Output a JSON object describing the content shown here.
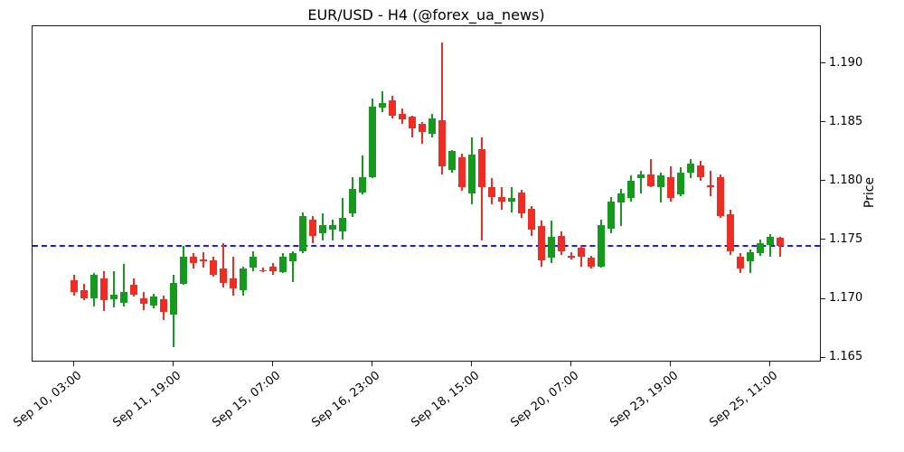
{
  "title": "EUR/USD - H4 (@forex_ua_news)",
  "chart_data": {
    "type": "candlestick",
    "title": "EUR/USD - H4 (@forex_ua_news)",
    "instrument": "EUR/USD",
    "timeframe": "H4",
    "ylabel_right": "Price",
    "ylim": [
      1.16462,
      1.19322
    ],
    "y_ticks": [
      1.165,
      1.17,
      1.175,
      1.18,
      1.185,
      1.19
    ],
    "y_tick_format": "0.000",
    "grid": false,
    "legend": "none",
    "up_color": "#169a1e",
    "down_color": "#ee2d24",
    "hline": {
      "value": 1.1745,
      "color": "#1a1aff",
      "style": "dashed"
    },
    "x_ticks": [
      {
        "index": 0,
        "label": "Sep 10, 03:00"
      },
      {
        "index": 10,
        "label": "Sep 11, 19:00"
      },
      {
        "index": 20,
        "label": "Sep 15, 07:00"
      },
      {
        "index": 30,
        "label": "Sep 16, 23:00"
      },
      {
        "index": 40,
        "label": "Sep 18, 15:00"
      },
      {
        "index": 50,
        "label": "Sep 20, 07:00"
      },
      {
        "index": 60,
        "label": "Sep 23, 19:00"
      },
      {
        "index": 70,
        "label": "Sep 25, 11:00"
      }
    ],
    "n_candles": 72,
    "candles_format": [
      "open",
      "high",
      "low",
      "close"
    ],
    "candles": [
      [
        1.1716,
        1.1721,
        1.1703,
        1.1706
      ],
      [
        1.1708,
        1.1713,
        1.1699,
        1.1701
      ],
      [
        1.1701,
        1.1722,
        1.1694,
        1.1721
      ],
      [
        1.1718,
        1.1724,
        1.169,
        1.1699
      ],
      [
        1.17,
        1.1724,
        1.1693,
        1.1704
      ],
      [
        1.1697,
        1.173,
        1.1694,
        1.1706
      ],
      [
        1.1712,
        1.1718,
        1.1702,
        1.1704
      ],
      [
        1.1701,
        1.1706,
        1.1691,
        1.1696
      ],
      [
        1.1695,
        1.1705,
        1.1692,
        1.1702
      ],
      [
        1.17,
        1.1703,
        1.1682,
        1.1689
      ],
      [
        1.1687,
        1.1721,
        1.1659,
        1.1714
      ],
      [
        1.1713,
        1.1745,
        1.1712,
        1.1736
      ],
      [
        1.1736,
        1.1739,
        1.1726,
        1.1731
      ],
      [
        1.1734,
        1.174,
        1.1727,
        1.1732
      ],
      [
        1.1733,
        1.1736,
        1.1719,
        1.1721
      ],
      [
        1.1726,
        1.1748,
        1.171,
        1.1714
      ],
      [
        1.1718,
        1.1736,
        1.1703,
        1.1709
      ],
      [
        1.1708,
        1.1728,
        1.1703,
        1.1726
      ],
      [
        1.1727,
        1.1741,
        1.1724,
        1.1736
      ],
      [
        1.1725,
        1.1727,
        1.1723,
        1.1724
      ],
      [
        1.1728,
        1.1731,
        1.1721,
        1.1724
      ],
      [
        1.1723,
        1.1739,
        1.1722,
        1.1736
      ],
      [
        1.1732,
        1.1741,
        1.1715,
        1.1739
      ],
      [
        1.1741,
        1.1774,
        1.1739,
        1.1771
      ],
      [
        1.1768,
        1.1771,
        1.1748,
        1.1754
      ],
      [
        1.1756,
        1.1773,
        1.175,
        1.1763
      ],
      [
        1.1759,
        1.1768,
        1.175,
        1.1763
      ],
      [
        1.1758,
        1.1786,
        1.1751,
        1.1769
      ],
      [
        1.1773,
        1.1804,
        1.177,
        1.1794
      ],
      [
        1.1791,
        1.1822,
        1.1789,
        1.1804
      ],
      [
        1.1804,
        1.1871,
        1.1803,
        1.1864
      ],
      [
        1.1863,
        1.1877,
        1.1859,
        1.1867
      ],
      [
        1.1869,
        1.1873,
        1.1854,
        1.1856
      ],
      [
        1.1858,
        1.1862,
        1.1849,
        1.1853
      ],
      [
        1.1855,
        1.1856,
        1.1838,
        1.1845
      ],
      [
        1.1849,
        1.1851,
        1.1832,
        1.1842
      ],
      [
        1.1841,
        1.1858,
        1.1838,
        1.1854
      ],
      [
        1.1852,
        1.1918,
        1.1806,
        1.1813
      ],
      [
        1.181,
        1.1827,
        1.1808,
        1.1826
      ],
      [
        1.1821,
        1.1824,
        1.1792,
        1.1795
      ],
      [
        1.179,
        1.1838,
        1.1781,
        1.1823
      ],
      [
        1.1828,
        1.1838,
        1.175,
        1.1795
      ],
      [
        1.1795,
        1.1803,
        1.1781,
        1.1787
      ],
      [
        1.1787,
        1.1795,
        1.1776,
        1.1783
      ],
      [
        1.1783,
        1.1795,
        1.1774,
        1.1786
      ],
      [
        1.1791,
        1.1793,
        1.1769,
        1.1773
      ],
      [
        1.1777,
        1.1779,
        1.1754,
        1.1759
      ],
      [
        1.1762,
        1.1767,
        1.1728,
        1.1733
      ],
      [
        1.1735,
        1.1767,
        1.1731,
        1.1753
      ],
      [
        1.1754,
        1.1758,
        1.1738,
        1.1741
      ],
      [
        1.1737,
        1.174,
        1.1734,
        1.1736
      ],
      [
        1.1744,
        1.1746,
        1.1728,
        1.1736
      ],
      [
        1.1735,
        1.1737,
        1.1726,
        1.1728
      ],
      [
        1.1728,
        1.1768,
        1.1727,
        1.1763
      ],
      [
        1.176,
        1.1787,
        1.1756,
        1.1783
      ],
      [
        1.1782,
        1.1794,
        1.1762,
        1.179
      ],
      [
        1.1786,
        1.1805,
        1.1783,
        1.1801
      ],
      [
        1.1803,
        1.1809,
        1.179,
        1.1806
      ],
      [
        1.1806,
        1.1819,
        1.1795,
        1.1796
      ],
      [
        1.1795,
        1.1808,
        1.1782,
        1.1805
      ],
      [
        1.1804,
        1.1813,
        1.1783,
        1.1786
      ],
      [
        1.1789,
        1.1812,
        1.1788,
        1.1808
      ],
      [
        1.1808,
        1.1819,
        1.1803,
        1.1815
      ],
      [
        1.1814,
        1.1818,
        1.1801,
        1.1804
      ],
      [
        1.1797,
        1.1809,
        1.1788,
        1.1795
      ],
      [
        1.1804,
        1.1806,
        1.1769,
        1.1771
      ],
      [
        1.1772,
        1.1776,
        1.1738,
        1.1741
      ],
      [
        1.1736,
        1.1739,
        1.1722,
        1.1726
      ],
      [
        1.1732,
        1.1742,
        1.1722,
        1.174
      ],
      [
        1.1739,
        1.1751,
        1.1737,
        1.1748
      ],
      [
        1.1746,
        1.1755,
        1.1736,
        1.1753
      ],
      [
        1.1752,
        1.1753,
        1.1736,
        1.1745
      ]
    ]
  }
}
